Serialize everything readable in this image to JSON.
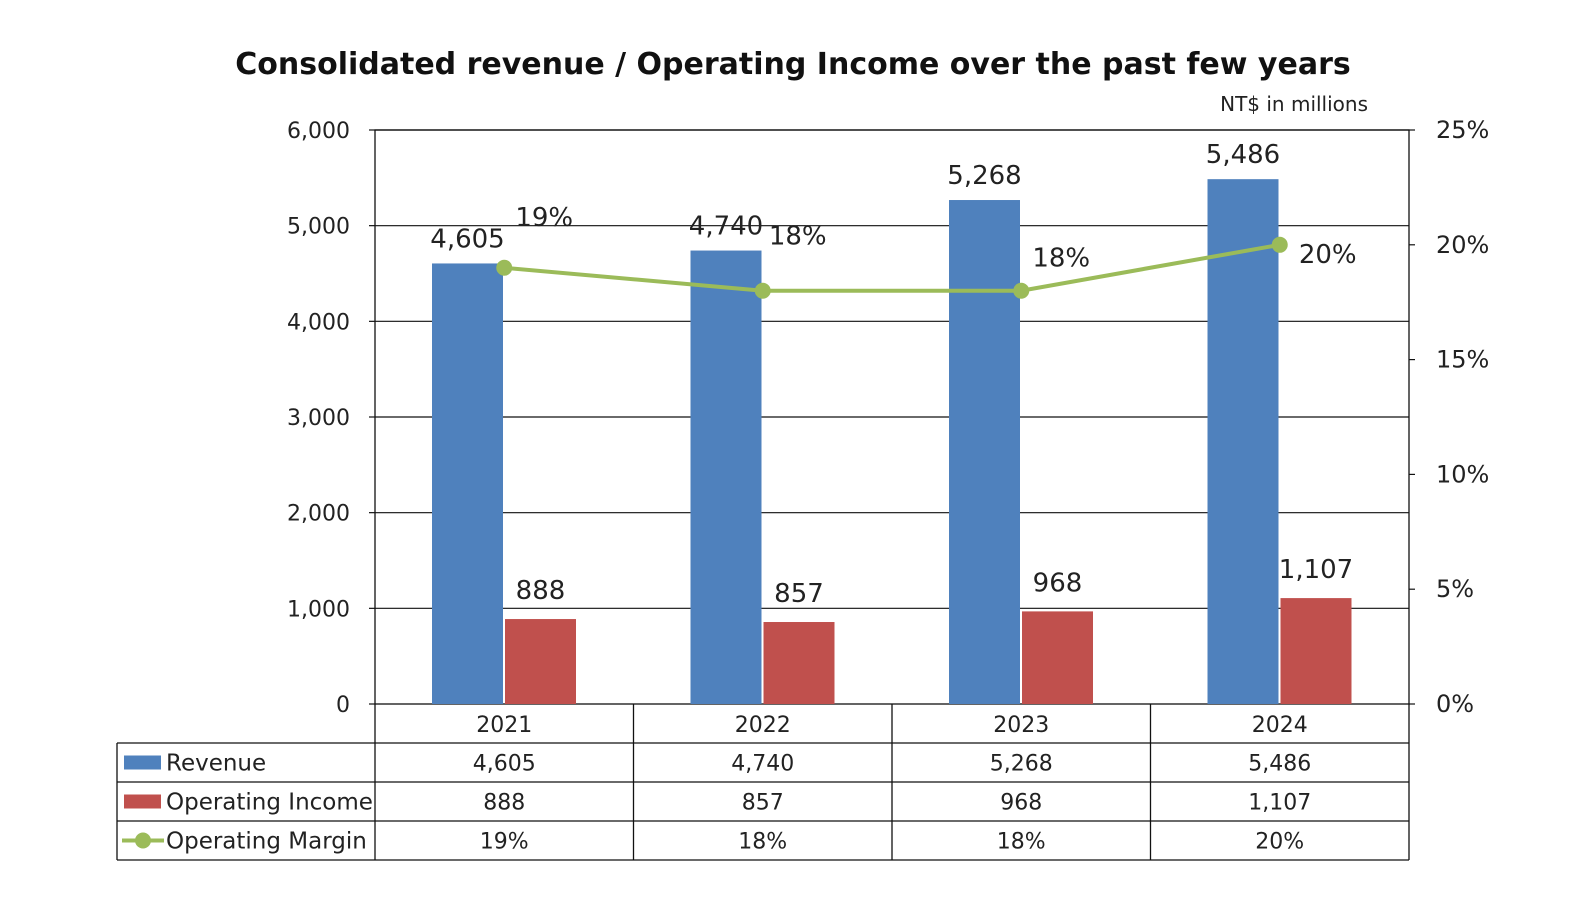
{
  "chart_data": {
    "type": "bar",
    "title": "Consolidated revenue / Operating Income over the past few years",
    "units_note": "NT$ in millions",
    "categories": [
      "2021",
      "2022",
      "2023",
      "2024"
    ],
    "series": [
      {
        "name": "Revenue",
        "kind": "bar",
        "axis": "left",
        "color": "#4F81BD",
        "values": [
          4605,
          4740,
          5268,
          5486
        ],
        "labels": [
          "4,605",
          "4,740",
          "5,268",
          "5,486"
        ]
      },
      {
        "name": "Operating Income",
        "kind": "bar",
        "axis": "left",
        "color": "#C0504D",
        "values": [
          888,
          857,
          968,
          1107
        ],
        "labels": [
          "888",
          "857",
          "968",
          "1,107"
        ]
      },
      {
        "name": "Operating Margin",
        "kind": "line",
        "axis": "right",
        "color": "#9BBB59",
        "values": [
          19,
          18,
          18,
          20
        ],
        "labels": [
          "19%",
          "18%",
          "18%",
          "20%"
        ]
      }
    ],
    "y_left": {
      "min": 0,
      "max": 6000,
      "ticks": [
        "0",
        "1,000",
        "2,000",
        "3,000",
        "4,000",
        "5,000",
        "6,000"
      ]
    },
    "y_right": {
      "min": 0,
      "max": 25,
      "ticks": [
        "0%",
        "5%",
        "10%",
        "15%",
        "20%",
        "25%"
      ]
    },
    "grid": true,
    "legend": "data-table"
  }
}
